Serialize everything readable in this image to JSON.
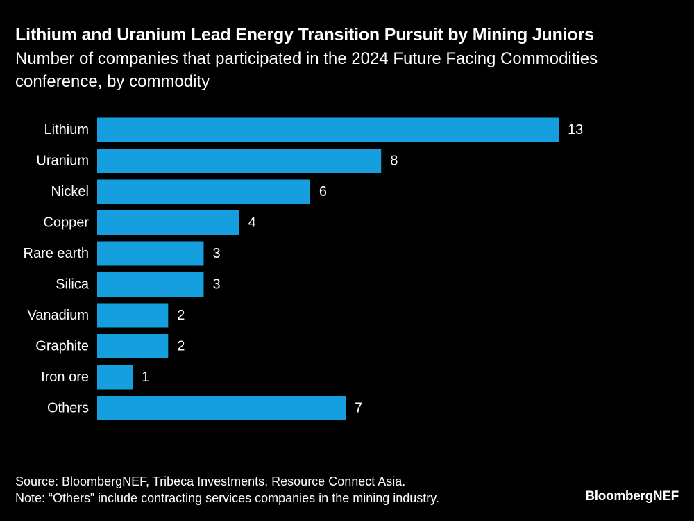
{
  "chart_data": {
    "type": "bar",
    "orientation": "horizontal",
    "title": "Lithium and Uranium Lead Energy Transition Pursuit by Mining Juniors",
    "subtitle": "Number of companies that participated in the 2024 Future Facing Commodities conference, by commodity",
    "categories": [
      "Lithium",
      "Uranium",
      "Nickel",
      "Copper",
      "Rare earth",
      "Silica",
      "Vanadium",
      "Graphite",
      "Iron ore",
      "Others"
    ],
    "values": [
      13,
      8,
      6,
      4,
      3,
      3,
      2,
      2,
      1,
      7
    ],
    "xlim": [
      0,
      13
    ],
    "grid": false,
    "legend": "none",
    "bar_color": "#169fdf",
    "data_labels": true
  },
  "footer": {
    "source": "Source: BloombergNEF, Tribeca Investments, Resource Connect Asia.",
    "note": "Note: “Others” include contracting services companies in the mining industry."
  },
  "brand": "BloombergNEF",
  "colors": {
    "background": "#000000",
    "text": "#ffffff",
    "bar": "#169fdf"
  }
}
